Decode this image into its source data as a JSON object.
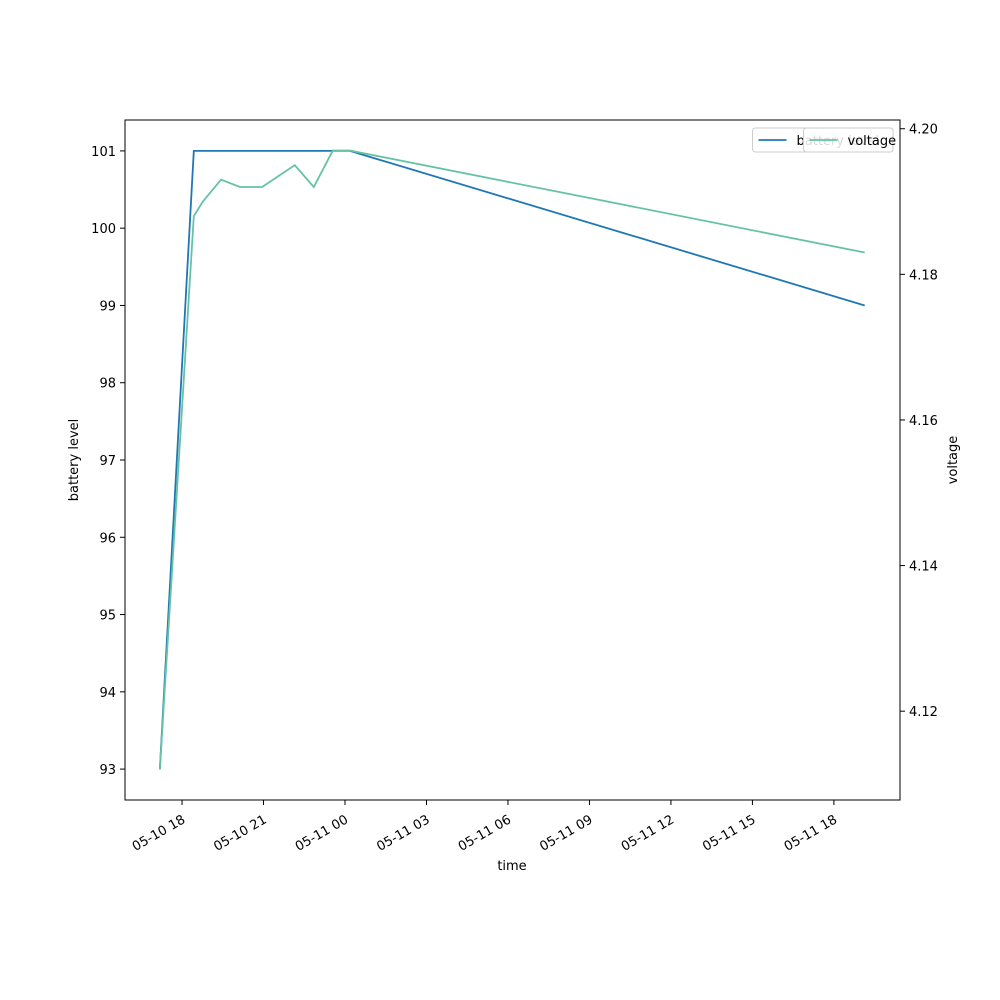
{
  "chart_data": {
    "type": "line",
    "xlabel": "time",
    "ylabel": "battery level",
    "y2label": "voltage",
    "xlim": [
      "05-10 15:54",
      "05-11 20:26"
    ],
    "xticks": [
      "05-10 18",
      "05-10 21",
      "05-11 00",
      "05-11 03",
      "05-11 06",
      "05-11 09",
      "05-11 12",
      "05-11 15",
      "05-11 18"
    ],
    "ylim": [
      92.6,
      101.4
    ],
    "yticks": [
      93,
      94,
      95,
      96,
      97,
      98,
      99,
      100,
      101
    ],
    "y2lim": [
      4.1078,
      4.2012
    ],
    "y2ticks": [
      4.12,
      4.14,
      4.16,
      4.18,
      {
        "value": 4.2,
        "label": "4.20"
      }
    ],
    "legend": "upper right",
    "series": [
      {
        "name": "battery level",
        "color": "#1f77b4",
        "x": [
          "05-10 17:11",
          "05-10 18:26",
          "05-11 00:11",
          "05-11 19:08"
        ],
        "values": [
          93,
          101,
          101,
          99
        ]
      },
      {
        "name": "voltage",
        "color": "#66c2a5",
        "axis": "y2",
        "x": [
          "05-10 17:11",
          "05-10 18:26",
          "05-10 18:46",
          "05-10 19:26",
          "05-10 20:08",
          "05-10 20:57",
          "05-10 22:09",
          "05-10 22:51",
          "05-10 23:33",
          "05-11 00:11",
          "05-11 19:08"
        ],
        "values": [
          4.112,
          4.188,
          4.19,
          4.193,
          4.192,
          4.192,
          4.195,
          4.192,
          4.197,
          4.197,
          4.183
        ]
      }
    ]
  }
}
